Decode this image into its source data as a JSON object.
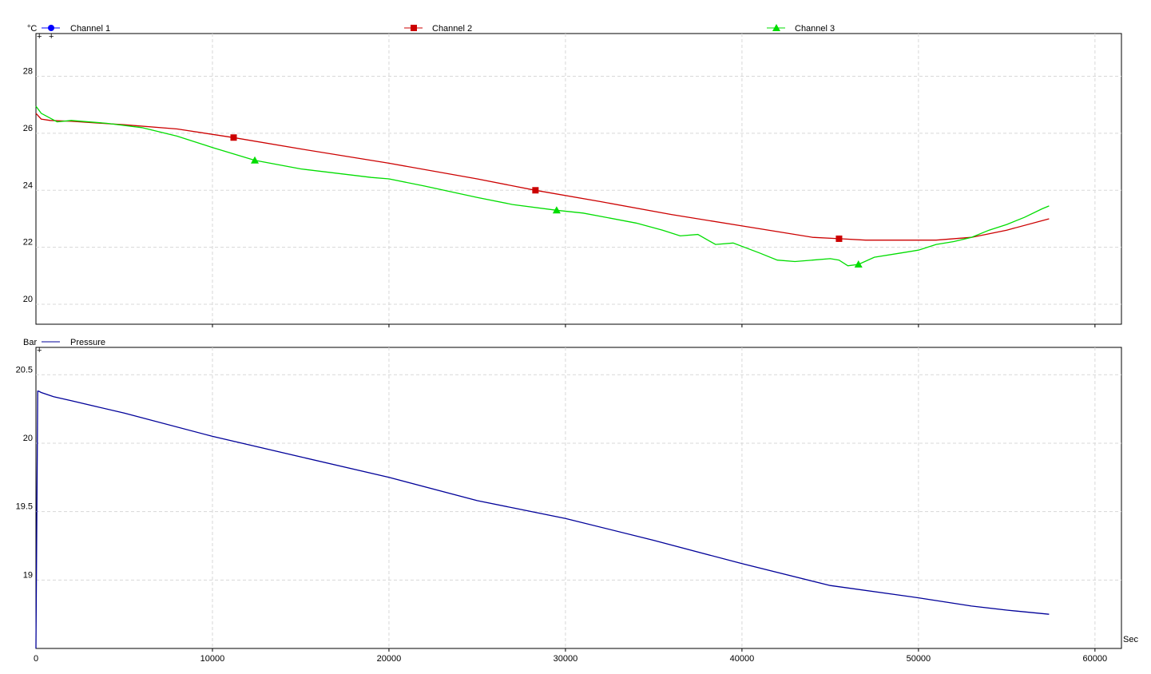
{
  "chart_data": [
    {
      "type": "line",
      "ylabel": "°C",
      "ylim": [
        19.3,
        29.5
      ],
      "xlim": [
        0,
        61500
      ],
      "grid": true,
      "yticks": [
        20,
        22,
        24,
        26,
        28
      ],
      "series": [
        {
          "name": "Channel 1",
          "color": "#0000ff",
          "marker": "circle",
          "x": [],
          "y": []
        },
        {
          "name": "Channel 2",
          "color": "#cc0000",
          "marker": "square",
          "x": [
            0,
            300,
            800,
            2000,
            5000,
            8000,
            11200,
            15000,
            20000,
            25000,
            28300,
            32000,
            36000,
            40000,
            42000,
            44000,
            45500,
            47000,
            49000,
            51000,
            53000,
            55000,
            57400
          ],
          "y": [
            26.7,
            26.5,
            26.45,
            26.42,
            26.3,
            26.15,
            25.85,
            25.45,
            24.95,
            24.4,
            24.0,
            23.6,
            23.15,
            22.75,
            22.55,
            22.35,
            22.3,
            22.25,
            22.25,
            22.25,
            22.35,
            22.6,
            23.0
          ],
          "marker_x": [
            11200,
            28300,
            45500
          ],
          "marker_y": [
            25.85,
            24.0,
            22.3
          ]
        },
        {
          "name": "Channel 3",
          "color": "#00dd00",
          "marker": "triangle",
          "x": [
            0,
            300,
            1200,
            2000,
            4000,
            6000,
            8000,
            10000,
            12400,
            15000,
            19000,
            20000,
            22000,
            25000,
            27000,
            29500,
            31000,
            34000,
            35500,
            36500,
            37500,
            38500,
            39500,
            41000,
            42000,
            43000,
            44000,
            45000,
            45500,
            46000,
            46600,
            47500,
            49000,
            50000,
            51000,
            52000,
            53000,
            54000,
            55000,
            56000,
            57000,
            57400
          ],
          "y": [
            26.95,
            26.7,
            26.4,
            26.45,
            26.35,
            26.2,
            25.9,
            25.5,
            25.05,
            24.75,
            24.45,
            24.4,
            24.15,
            23.75,
            23.5,
            23.3,
            23.2,
            22.85,
            22.6,
            22.4,
            22.45,
            22.1,
            22.15,
            21.8,
            21.55,
            21.5,
            21.55,
            21.6,
            21.55,
            21.35,
            21.4,
            21.65,
            21.8,
            21.9,
            22.1,
            22.2,
            22.35,
            22.6,
            22.8,
            23.05,
            23.35,
            23.45
          ],
          "marker_x": [
            12400,
            29500,
            46600
          ],
          "marker_y": [
            25.05,
            23.3,
            21.4
          ]
        }
      ]
    },
    {
      "type": "line",
      "ylabel": "Bar",
      "xlabel": "Sec",
      "ylim": [
        18.5,
        20.7
      ],
      "xlim": [
        0,
        61500
      ],
      "grid": true,
      "yticks": [
        19,
        19.5,
        20,
        20.5
      ],
      "ytick_labels": [
        "19",
        "19.5",
        "20",
        "20.5"
      ],
      "xticks": [
        0,
        10000,
        20000,
        30000,
        40000,
        50000,
        60000
      ],
      "series": [
        {
          "name": "Pressure",
          "color": "#000099",
          "marker": "none",
          "x": [
            0,
            50,
            100,
            150,
            300,
            1000,
            2000,
            5000,
            10000,
            15000,
            20000,
            25000,
            30000,
            35000,
            40000,
            45000,
            50000,
            53000,
            55000,
            57400
          ],
          "y": [
            18.5,
            19.45,
            20.38,
            20.38,
            20.37,
            20.34,
            20.31,
            20.22,
            20.05,
            19.9,
            19.75,
            19.58,
            19.45,
            19.29,
            19.12,
            18.96,
            18.87,
            18.81,
            18.78,
            18.75
          ]
        }
      ]
    }
  ]
}
